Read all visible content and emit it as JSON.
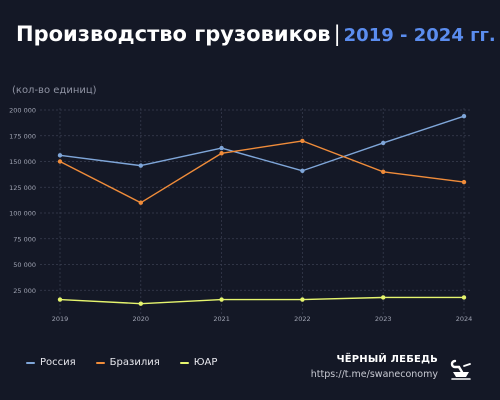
{
  "header": {
    "title": "Производство грузовиков",
    "separator": "|",
    "years": "2019 - 2024 гг."
  },
  "brand": {
    "name": "ЧЁРНЫЙ ЛЕБЕДЬ",
    "link": "https://t.me/swaneconomy",
    "logo_icon": "swan-icon"
  },
  "colors": {
    "background": "#141826",
    "accent": "#5b8def"
  },
  "chart_data": {
    "type": "line",
    "title": "Производство грузовиков",
    "ylabel": "(кол-во единиц)",
    "xlabel": "",
    "x": [
      "2019",
      "2020",
      "2021",
      "2022",
      "2023",
      "2024"
    ],
    "ylim": [
      0,
      200000
    ],
    "yticks": [
      25000,
      50000,
      75000,
      100000,
      125000,
      150000,
      175000,
      200000
    ],
    "ytick_labels": [
      "25 000",
      "50 000",
      "75 000",
      "100 000",
      "125 000",
      "150 000",
      "175 000",
      "200 000"
    ],
    "grid": true,
    "legend": "bottom-left",
    "series": [
      {
        "name": "Россия",
        "color": "#7fa6d9",
        "values": [
          156000,
          146000,
          163000,
          141000,
          168000,
          194000
        ]
      },
      {
        "name": "Бразилия",
        "color": "#f08c3a",
        "values": [
          150000,
          110000,
          158000,
          170000,
          140000,
          130000
        ]
      },
      {
        "name": "ЮАР",
        "color": "#e6f56e",
        "values": [
          16000,
          12000,
          16000,
          16000,
          18000,
          18000
        ]
      }
    ]
  }
}
